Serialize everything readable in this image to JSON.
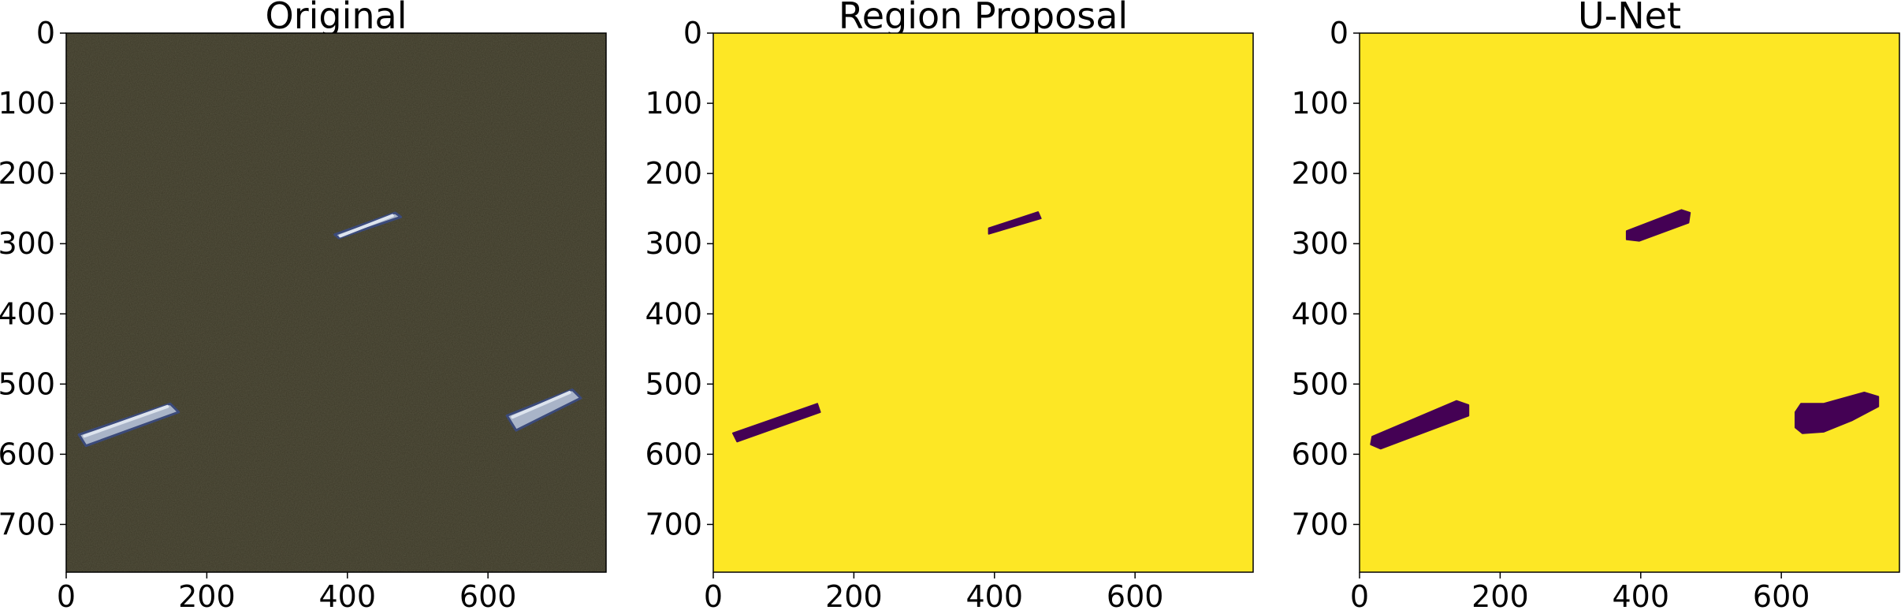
{
  "chart_data": [
    {
      "type": "image",
      "title": "Original",
      "xlabel": "",
      "ylabel": "",
      "xlim": [
        0,
        768
      ],
      "ylim": [
        768,
        0
      ],
      "xticks": [
        0,
        200,
        400,
        600
      ],
      "yticks": [
        0,
        100,
        200,
        300,
        400,
        500,
        600,
        700
      ],
      "background_color": "#3a3726",
      "objects": [
        {
          "points": [
            [
              382,
              287
            ],
            [
              468,
              256
            ],
            [
              476,
              262
            ],
            [
              388,
              292
            ]
          ]
        },
        {
          "points": [
            [
              18,
              572
            ],
            [
              148,
              528
            ],
            [
              160,
              540
            ],
            [
              28,
              588
            ]
          ]
        },
        {
          "points": [
            [
              627,
              545
            ],
            [
              720,
              508
            ],
            [
              732,
              520
            ],
            [
              640,
              566
            ]
          ]
        }
      ]
    },
    {
      "type": "image",
      "title": "Region Proposal",
      "xlabel": "",
      "ylabel": "",
      "xlim": [
        0,
        768
      ],
      "ylim": [
        768,
        0
      ],
      "xticks": [
        0,
        200,
        400,
        600
      ],
      "yticks": [
        0,
        100,
        200,
        300,
        400,
        500,
        600,
        700
      ],
      "background_color": "#fde725",
      "mask_color": "#440154",
      "objects": [
        {
          "points": [
            [
              392,
              278
            ],
            [
              462,
              255
            ],
            [
              466,
              264
            ],
            [
              392,
              286
            ]
          ]
        },
        {
          "points": [
            [
              28,
              570
            ],
            [
              148,
              528
            ],
            [
              152,
              540
            ],
            [
              34,
              582
            ]
          ]
        }
      ]
    },
    {
      "type": "image",
      "title": "U-Net",
      "xlabel": "",
      "ylabel": "",
      "xlim": [
        0,
        768
      ],
      "ylim": [
        768,
        0
      ],
      "xticks": [
        0,
        200,
        400,
        600
      ],
      "yticks": [
        0,
        100,
        200,
        300,
        400,
        500,
        600,
        700
      ],
      "background_color": "#fde725",
      "mask_color": "#440154",
      "objects": [
        {
          "points": [
            [
              380,
              282
            ],
            [
              458,
              252
            ],
            [
              470,
              256
            ],
            [
              468,
              270
            ],
            [
              398,
              296
            ],
            [
              380,
              294
            ]
          ]
        },
        {
          "points": [
            [
              18,
              575
            ],
            [
              138,
              524
            ],
            [
              155,
              530
            ],
            [
              155,
              545
            ],
            [
              30,
              592
            ],
            [
              16,
              586
            ]
          ]
        },
        {
          "points": [
            [
              620,
              540
            ],
            [
              628,
              528
            ],
            [
              660,
              528
            ],
            [
              718,
              512
            ],
            [
              738,
              518
            ],
            [
              738,
              532
            ],
            [
              700,
              552
            ],
            [
              660,
              568
            ],
            [
              630,
              570
            ],
            [
              620,
              562
            ]
          ]
        }
      ]
    }
  ]
}
